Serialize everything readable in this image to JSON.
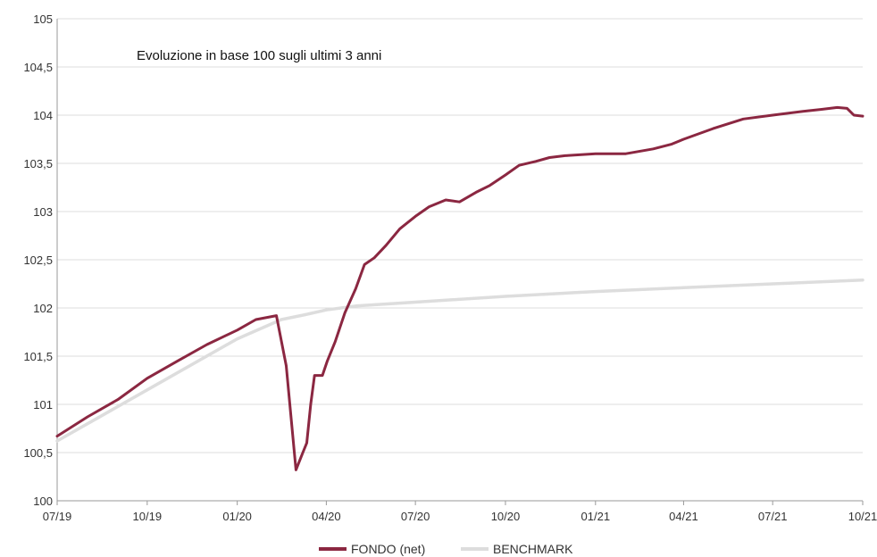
{
  "chart_data": {
    "type": "line",
    "title": "Evoluzione in base 100 sugli ultimi 3 anni",
    "xlabel": "",
    "ylabel": "",
    "ylim": [
      100,
      105
    ],
    "yticks": [
      100,
      100.5,
      101,
      101.5,
      102,
      102.5,
      103,
      103.5,
      104,
      104.5,
      105
    ],
    "ytick_labels": [
      "100",
      "100,5",
      "101",
      "101,5",
      "102",
      "102,5",
      "103",
      "103,5",
      "104",
      "104,5",
      "105"
    ],
    "xlim": [
      "2019-07",
      "2021-10"
    ],
    "xticks": [
      "2019-07",
      "2019-10",
      "2020-01",
      "2020-04",
      "2020-07",
      "2020-10",
      "2021-01",
      "2021-04",
      "2021-07",
      "2021-10"
    ],
    "xtick_labels": [
      "07/19",
      "10/19",
      "01/20",
      "04/20",
      "07/20",
      "10/20",
      "01/21",
      "04/21",
      "07/21",
      "10/21"
    ],
    "grid": true,
    "legend_position": "bottom",
    "series": [
      {
        "name": "FONDO (net)",
        "color": "#8b2741",
        "x": [
          "2019-07-01",
          "2019-08-01",
          "2019-09-01",
          "2019-10-01",
          "2019-11-01",
          "2019-12-01",
          "2020-01-01",
          "2020-01-20",
          "2020-02-10",
          "2020-02-20",
          "2020-03-01",
          "2020-03-08",
          "2020-03-12",
          "2020-03-16",
          "2020-03-20",
          "2020-03-28",
          "2020-04-02",
          "2020-04-10",
          "2020-04-20",
          "2020-05-01",
          "2020-05-10",
          "2020-05-20",
          "2020-06-01",
          "2020-06-15",
          "2020-07-01",
          "2020-07-15",
          "2020-08-01",
          "2020-08-15",
          "2020-09-01",
          "2020-09-15",
          "2020-10-01",
          "2020-10-15",
          "2020-11-01",
          "2020-11-15",
          "2020-12-01",
          "2021-01-01",
          "2021-02-01",
          "2021-03-01",
          "2021-03-20",
          "2021-04-01",
          "2021-05-01",
          "2021-06-01",
          "2021-07-01",
          "2021-08-01",
          "2021-08-20",
          "2021-09-05",
          "2021-09-15",
          "2021-09-22",
          "2021-10-01"
        ],
        "values": [
          100.67,
          100.87,
          101.05,
          101.27,
          101.45,
          101.62,
          101.77,
          101.88,
          101.92,
          101.4,
          100.32,
          100.5,
          100.6,
          101.0,
          101.3,
          101.3,
          101.45,
          101.65,
          101.95,
          102.2,
          102.45,
          102.52,
          102.65,
          102.82,
          102.95,
          103.05,
          103.12,
          103.1,
          103.2,
          103.27,
          103.38,
          103.48,
          103.52,
          103.56,
          103.58,
          103.6,
          103.6,
          103.65,
          103.7,
          103.75,
          103.86,
          103.96,
          104.0,
          104.04,
          104.06,
          104.08,
          104.07,
          104.0,
          103.99
        ]
      },
      {
        "name": "BENCHMARK",
        "color": "#dddddd",
        "x": [
          "2019-07-01",
          "2019-10-01",
          "2020-01-01",
          "2020-02-15",
          "2020-03-10",
          "2020-04-01",
          "2020-05-01",
          "2020-07-01",
          "2020-10-01",
          "2021-01-01",
          "2021-04-01",
          "2021-07-01",
          "2021-10-01"
        ],
        "values": [
          100.62,
          101.15,
          101.68,
          101.88,
          101.93,
          101.98,
          102.02,
          102.06,
          102.12,
          102.17,
          102.21,
          102.25,
          102.29
        ]
      }
    ]
  }
}
